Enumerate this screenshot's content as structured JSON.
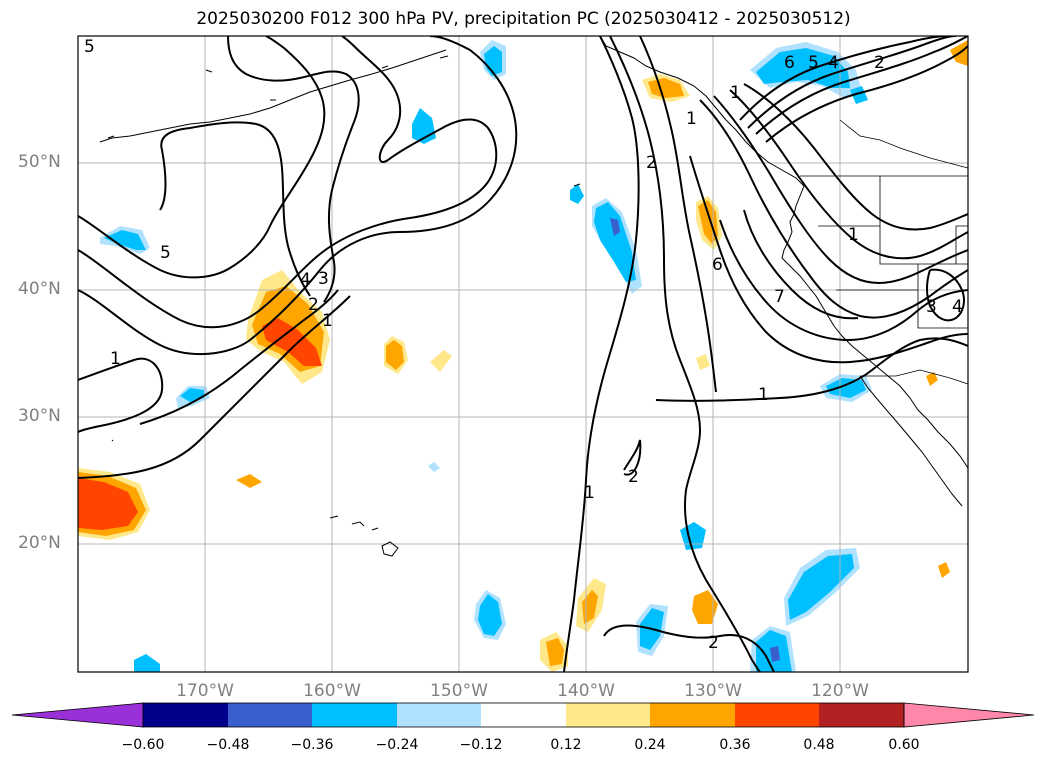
{
  "title": "2025030200 F012 300 hPa PV, precipitation PC (2025030412 - 2025030512)",
  "map": {
    "region": "North Pacific and western North America",
    "lat_labels": [
      "50°N",
      "40°N",
      "30°N",
      "20°N"
    ],
    "lon_labels": [
      "170°W",
      "160°W",
      "150°W",
      "140°W",
      "130°W",
      "120°W"
    ],
    "contour_labels": [
      "5",
      "5",
      "4",
      "3",
      "2",
      "1",
      "1",
      "2",
      "1",
      "2",
      "2",
      "1",
      "6",
      "7",
      "6",
      "5",
      "4",
      "2",
      "1",
      "3",
      "4",
      "1",
      "1"
    ]
  },
  "colorbar": {
    "tick_labels": [
      "−0.60",
      "−0.48",
      "−0.36",
      "−0.24",
      "−0.12",
      "0.12",
      "0.24",
      "0.36",
      "0.48",
      "0.60"
    ],
    "colors": [
      "#9a30d8",
      "#00008b",
      "#3a5fcd",
      "#00bfff",
      "#b0e2ff",
      "#ffffff",
      "#ffe88a",
      "#ffa500",
      "#ff4500",
      "#b22222",
      "#ff88aa"
    ]
  },
  "fill_colors": {
    "pos_light": "#ffe88a",
    "pos_mid": "#ffa500",
    "pos_strong": "#ff4500",
    "neg_light": "#b0e2ff",
    "neg_mid": "#00bfff",
    "neg_strong": "#3a5fcd"
  }
}
